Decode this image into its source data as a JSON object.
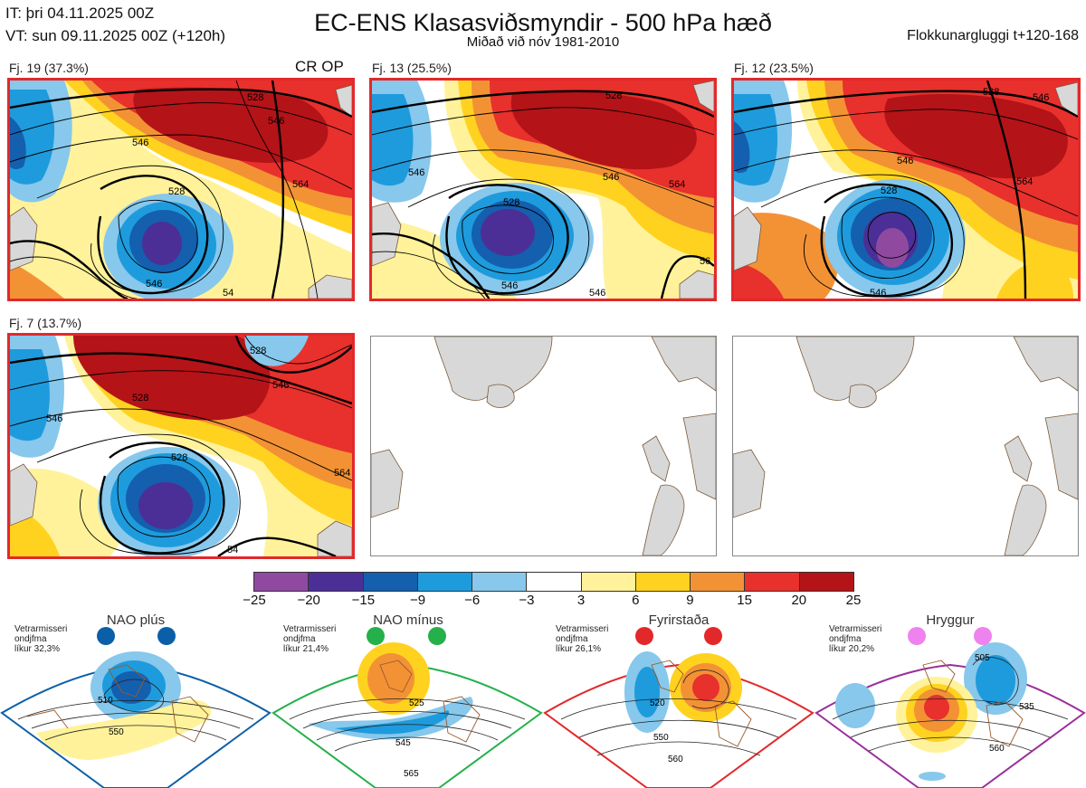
{
  "header": {
    "it_line": "IT: þri 04.11.2025 00Z",
    "vt_line": "VT: sun 09.11.2025 00Z  (+120h)",
    "title": "EC-ENS Klasasviðsmyndir - 500 hPa hæð",
    "subtitle": "Miðað við nóv 1981-2010",
    "window": "Flokkunargluggi t+120-168"
  },
  "panels": [
    {
      "label": "Fj. 19 (37.3%)",
      "tag": "CR OP",
      "contours": [
        "528",
        "546",
        "546",
        "564",
        "528",
        "546",
        "54"
      ]
    },
    {
      "label": "Fj. 13 (25.5%)",
      "contours": [
        "528",
        "546",
        "528",
        "546",
        "564",
        "546",
        "546",
        "56"
      ]
    },
    {
      "label": "Fj. 12 (23.5%)",
      "contours": [
        "528",
        "546",
        "564",
        "528",
        "546",
        "546"
      ]
    },
    {
      "label": "Fj. 7 (13.7%)",
      "contours": [
        "528",
        "546",
        "528",
        "528",
        "546",
        "564",
        "54"
      ]
    }
  ],
  "colorbar": {
    "ticks": [
      "−25",
      "−20",
      "−15",
      "−9",
      "−6",
      "−3",
      "3",
      "6",
      "9",
      "15",
      "20",
      "25"
    ],
    "colors": [
      "#8f4a9f",
      "#4b2f96",
      "#145fae",
      "#1e9bdc",
      "#87c8ec",
      "#ffffff",
      "#fff29a",
      "#ffd21f",
      "#f39235",
      "#e8302d",
      "#b41318"
    ]
  },
  "regimes": [
    {
      "name": "NAO plús",
      "note": [
        "Vetrarmisseri",
        "ondjfma",
        "líkur 32,3%"
      ],
      "color": "#0b5fa8",
      "contours": [
        "510",
        "550"
      ]
    },
    {
      "name": "NAO mínus",
      "note": [
        "Vetrarmisseri",
        "ondjfma",
        "líkur 21,4%"
      ],
      "color": "#24b04a",
      "contours": [
        "525",
        "545",
        "565"
      ]
    },
    {
      "name": "Fyrirstaða",
      "note": [
        "Vetrarmisseri",
        "ondjfma",
        "líkur 26,1%"
      ],
      "color": "#e3282a",
      "contours": [
        "520",
        "550",
        "560"
      ]
    },
    {
      "name": "Hryggur",
      "note": [
        "Vetrarmisseri",
        "ondjfma",
        "líkur 20,2%"
      ],
      "color": "#9a2f9b",
      "contours": [
        "505",
        "535",
        "560"
      ]
    }
  ]
}
